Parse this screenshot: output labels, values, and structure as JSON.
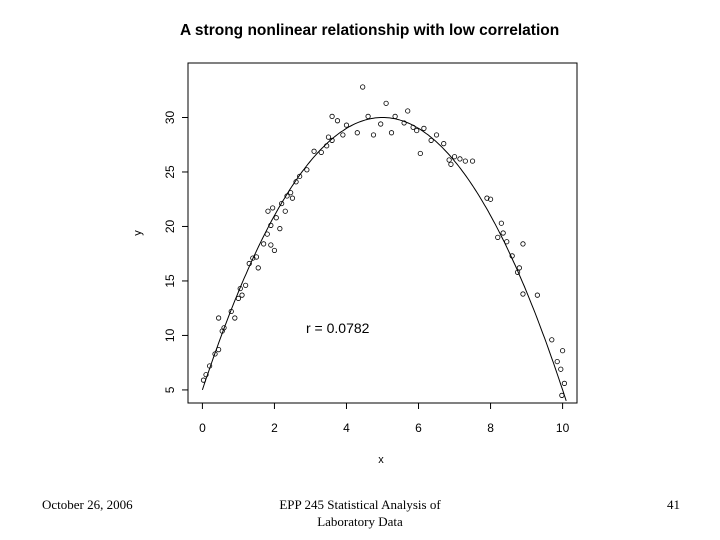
{
  "chart_data": {
    "type": "scatter",
    "title": "A strong nonlinear relationship with low correlation",
    "xlabel": "x",
    "ylabel": "y",
    "xlim": [
      -0.4,
      10.4
    ],
    "ylim": [
      3.8,
      35.0
    ],
    "xticks": [
      0,
      2,
      4,
      6,
      8,
      10
    ],
    "yticks": [
      5,
      10,
      15,
      20,
      25,
      30
    ],
    "annotation": "r = 0.0782",
    "grid": false,
    "fit_curve": {
      "type": "quadratic",
      "vertex_x": 5.0,
      "vertex_y": 30.0,
      "curvature": 1.0
    },
    "points": [
      {
        "x": 0.03,
        "y": 5.9
      },
      {
        "x": 0.1,
        "y": 6.4
      },
      {
        "x": 0.2,
        "y": 7.2
      },
      {
        "x": 0.35,
        "y": 8.3
      },
      {
        "x": 0.45,
        "y": 8.7
      },
      {
        "x": 0.45,
        "y": 11.6
      },
      {
        "x": 0.55,
        "y": 10.4
      },
      {
        "x": 0.6,
        "y": 10.7
      },
      {
        "x": 0.8,
        "y": 12.2
      },
      {
        "x": 0.9,
        "y": 11.6
      },
      {
        "x": 1.0,
        "y": 13.4
      },
      {
        "x": 1.05,
        "y": 14.3
      },
      {
        "x": 1.1,
        "y": 13.7
      },
      {
        "x": 1.2,
        "y": 14.6
      },
      {
        "x": 1.3,
        "y": 16.6
      },
      {
        "x": 1.4,
        "y": 17.1
      },
      {
        "x": 1.5,
        "y": 17.2
      },
      {
        "x": 1.55,
        "y": 16.2
      },
      {
        "x": 1.7,
        "y": 18.4
      },
      {
        "x": 1.8,
        "y": 19.3
      },
      {
        "x": 1.82,
        "y": 21.4
      },
      {
        "x": 1.9,
        "y": 20.1
      },
      {
        "x": 1.95,
        "y": 21.7
      },
      {
        "x": 1.9,
        "y": 18.3
      },
      {
        "x": 2.0,
        "y": 17.8
      },
      {
        "x": 2.05,
        "y": 20.8
      },
      {
        "x": 2.15,
        "y": 19.8
      },
      {
        "x": 2.2,
        "y": 22.1
      },
      {
        "x": 2.3,
        "y": 21.4
      },
      {
        "x": 2.35,
        "y": 22.8
      },
      {
        "x": 2.45,
        "y": 23.1
      },
      {
        "x": 2.5,
        "y": 22.6
      },
      {
        "x": 2.6,
        "y": 24.1
      },
      {
        "x": 2.7,
        "y": 24.6
      },
      {
        "x": 2.9,
        "y": 25.2
      },
      {
        "x": 3.1,
        "y": 26.9
      },
      {
        "x": 3.3,
        "y": 26.8
      },
      {
        "x": 3.45,
        "y": 27.4
      },
      {
        "x": 3.5,
        "y": 28.2
      },
      {
        "x": 3.6,
        "y": 27.9
      },
      {
        "x": 3.6,
        "y": 30.1
      },
      {
        "x": 3.75,
        "y": 29.7
      },
      {
        "x": 3.9,
        "y": 28.4
      },
      {
        "x": 4.0,
        "y": 29.3
      },
      {
        "x": 4.3,
        "y": 28.6
      },
      {
        "x": 4.45,
        "y": 32.8
      },
      {
        "x": 4.6,
        "y": 30.1
      },
      {
        "x": 4.75,
        "y": 28.4
      },
      {
        "x": 4.95,
        "y": 29.4
      },
      {
        "x": 5.1,
        "y": 31.3
      },
      {
        "x": 5.25,
        "y": 28.6
      },
      {
        "x": 5.35,
        "y": 30.1
      },
      {
        "x": 5.6,
        "y": 29.5
      },
      {
        "x": 5.7,
        "y": 30.6
      },
      {
        "x": 5.85,
        "y": 29.1
      },
      {
        "x": 5.95,
        "y": 28.8
      },
      {
        "x": 6.05,
        "y": 26.7
      },
      {
        "x": 6.15,
        "y": 29.0
      },
      {
        "x": 6.35,
        "y": 27.9
      },
      {
        "x": 6.5,
        "y": 28.4
      },
      {
        "x": 6.7,
        "y": 27.6
      },
      {
        "x": 6.85,
        "y": 26.1
      },
      {
        "x": 6.9,
        "y": 25.7
      },
      {
        "x": 7.0,
        "y": 26.4
      },
      {
        "x": 7.15,
        "y": 26.2
      },
      {
        "x": 7.3,
        "y": 26.0
      },
      {
        "x": 7.5,
        "y": 26.0
      },
      {
        "x": 7.9,
        "y": 22.6
      },
      {
        "x": 8.0,
        "y": 22.5
      },
      {
        "x": 8.2,
        "y": 19.0
      },
      {
        "x": 8.3,
        "y": 20.3
      },
      {
        "x": 8.35,
        "y": 19.4
      },
      {
        "x": 8.45,
        "y": 18.6
      },
      {
        "x": 8.6,
        "y": 17.3
      },
      {
        "x": 8.75,
        "y": 15.8
      },
      {
        "x": 8.8,
        "y": 16.2
      },
      {
        "x": 8.9,
        "y": 18.4
      },
      {
        "x": 8.9,
        "y": 13.8
      },
      {
        "x": 9.3,
        "y": 13.7
      },
      {
        "x": 9.7,
        "y": 9.6
      },
      {
        "x": 9.85,
        "y": 7.6
      },
      {
        "x": 9.95,
        "y": 6.9
      },
      {
        "x": 10.0,
        "y": 8.6
      },
      {
        "x": 9.98,
        "y": 4.5
      },
      {
        "x": 10.05,
        "y": 5.6
      }
    ]
  },
  "footer": {
    "date": "October 26, 2006",
    "course_line1": "EPP 245 Statistical Analysis of",
    "course_line2": "Laboratory Data",
    "page_number": "41"
  }
}
